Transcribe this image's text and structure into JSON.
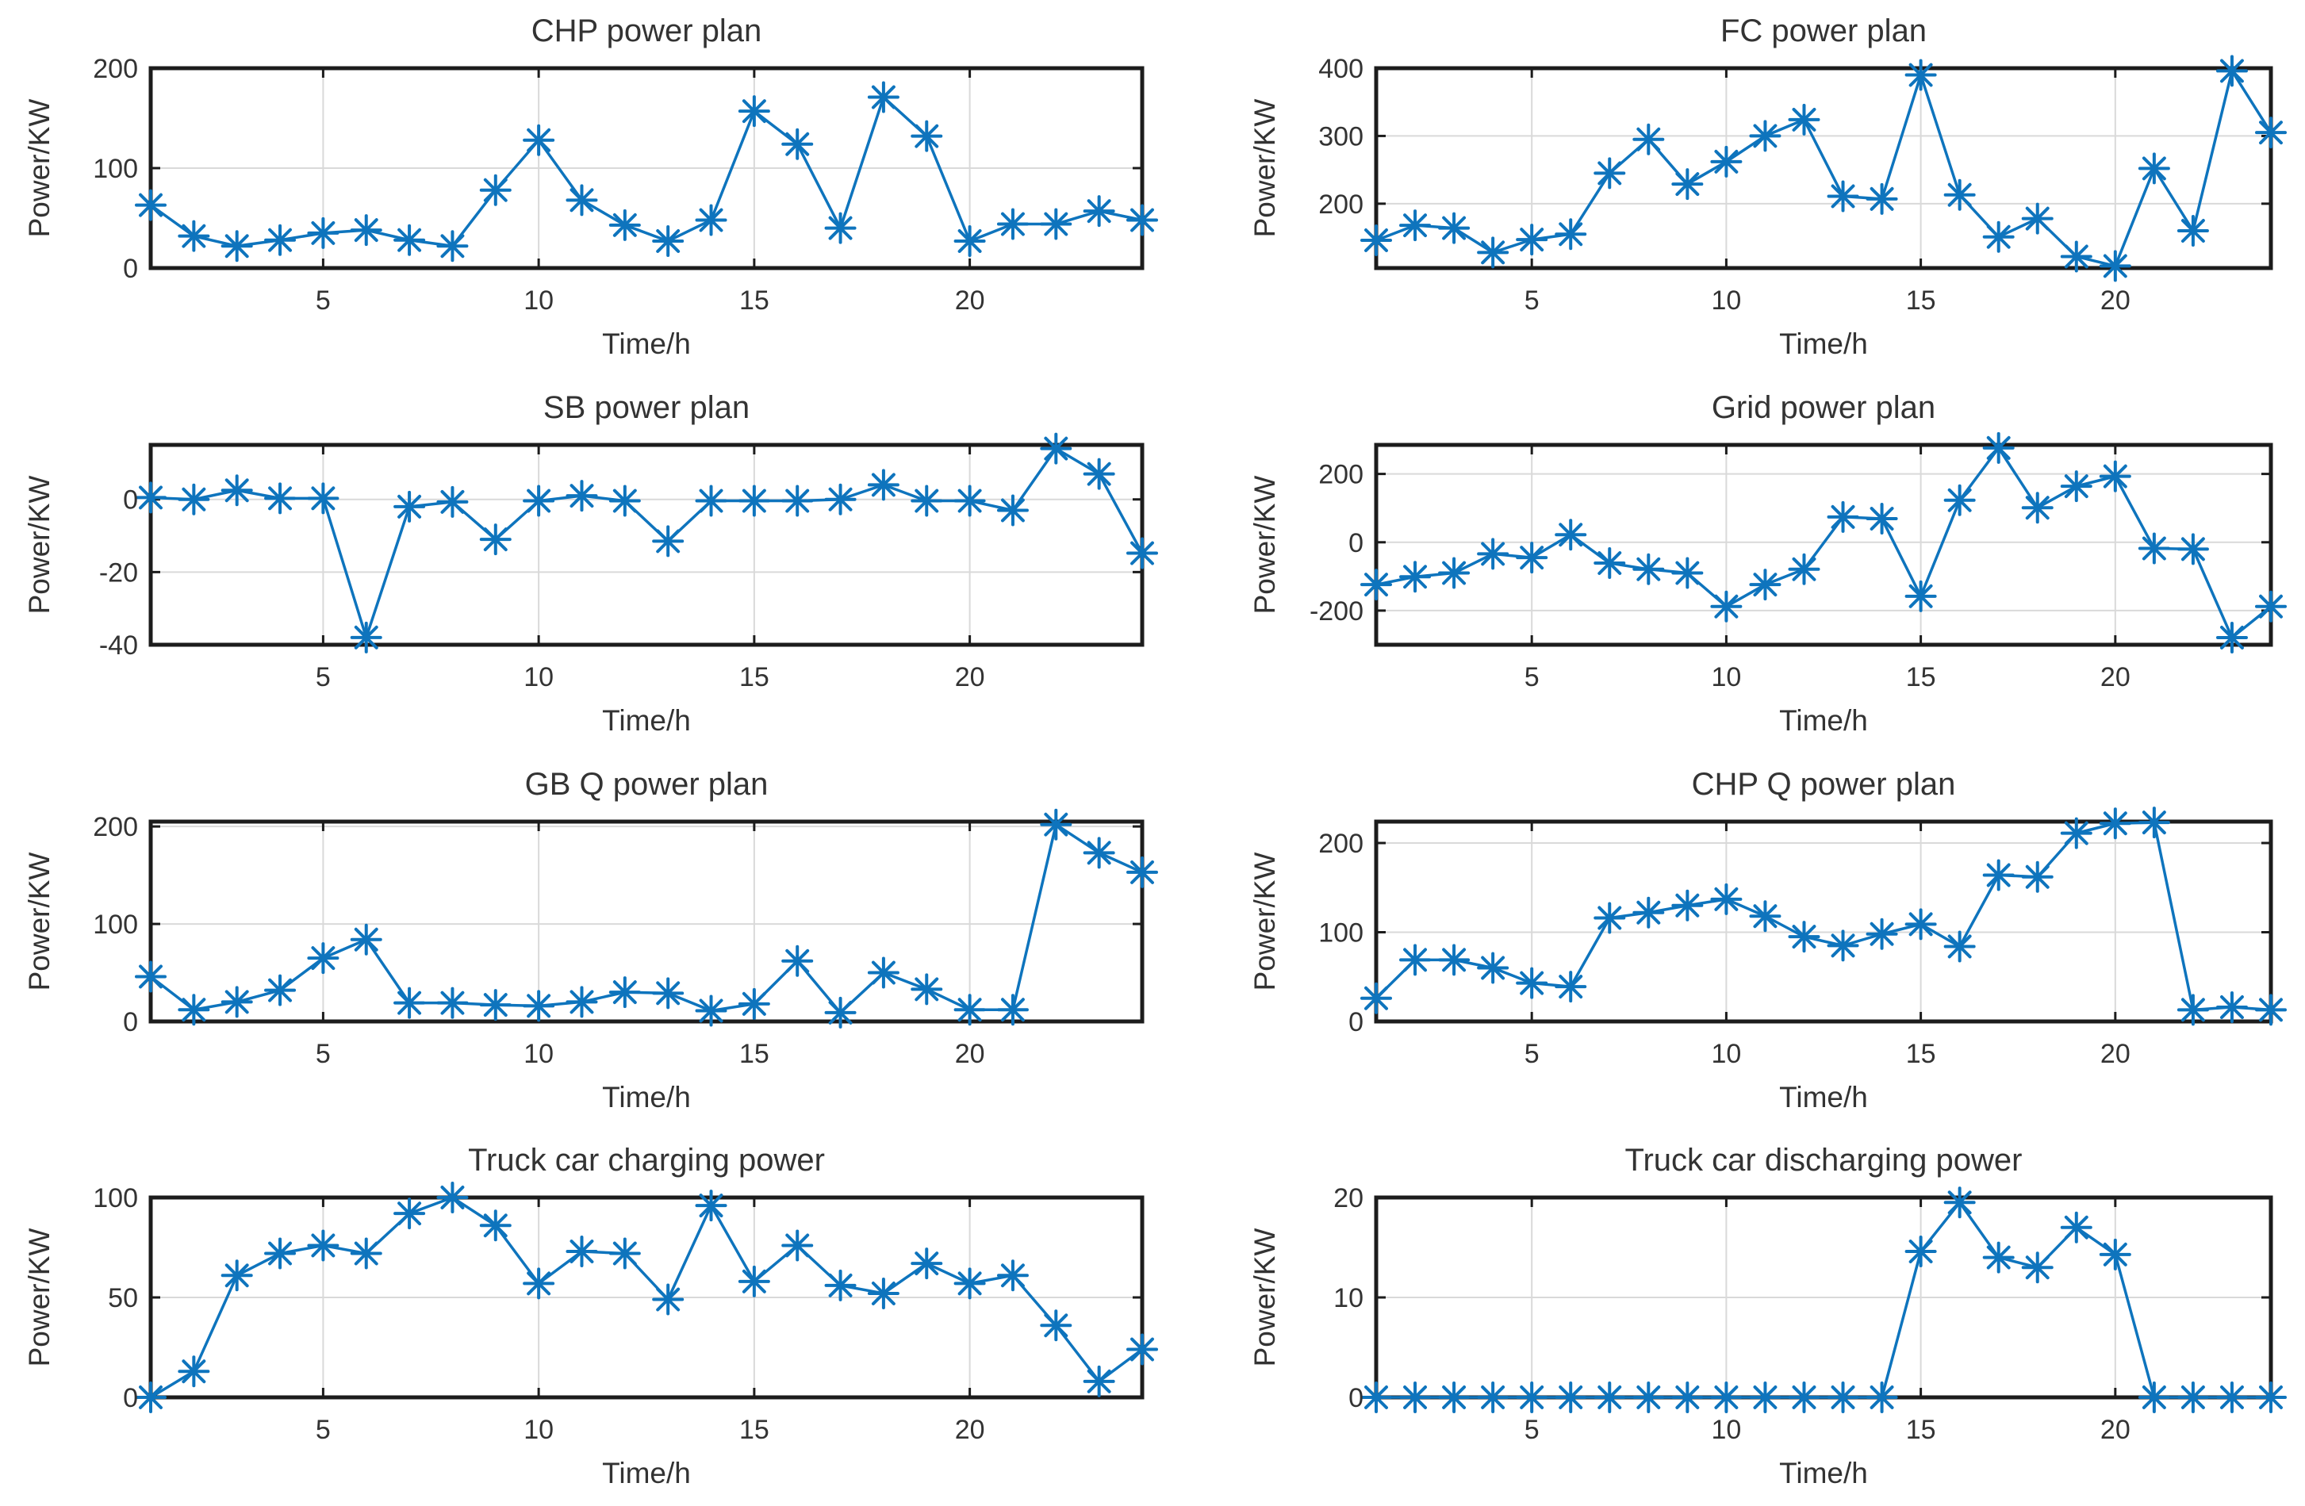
{
  "figure": {
    "background": "#ffffff",
    "line_color": "#0e74bd",
    "grid_color": "#d9d9d9",
    "axis_color": "#1c1c1c",
    "text_color": "#333333",
    "marker": "asterisk"
  },
  "chart_data": [
    {
      "type": "line",
      "title": "CHP power plan",
      "xlabel": "Time/h",
      "ylabel": "Power/KW",
      "xlim": [
        1,
        24
      ],
      "ylim": [
        0,
        200
      ],
      "xticks": [
        5,
        10,
        15,
        20
      ],
      "yticks": [
        0,
        100,
        200
      ],
      "grid": true,
      "legend": null,
      "x": [
        1,
        2,
        3,
        4,
        5,
        6,
        7,
        8,
        9,
        10,
        11,
        12,
        13,
        14,
        15,
        16,
        17,
        18,
        19,
        20,
        21,
        22,
        23,
        24
      ],
      "values": [
        63,
        32,
        22,
        28,
        35,
        38,
        28,
        22,
        78,
        128,
        68,
        43,
        27,
        48,
        157,
        124,
        40,
        171,
        132,
        27,
        44,
        44,
        57,
        48
      ]
    },
    {
      "type": "line",
      "title": "FC power plan",
      "xlabel": "Time/h",
      "ylabel": "Power/KW",
      "xlim": [
        1,
        24
      ],
      "ylim": [
        105,
        400
      ],
      "xticks": [
        5,
        10,
        15,
        20
      ],
      "yticks": [
        200,
        300,
        400
      ],
      "grid": true,
      "legend": null,
      "x": [
        1,
        2,
        3,
        4,
        5,
        6,
        7,
        8,
        9,
        10,
        11,
        12,
        13,
        14,
        15,
        16,
        17,
        18,
        19,
        20,
        21,
        22,
        23,
        24
      ],
      "values": [
        146,
        168,
        164,
        128,
        147,
        155,
        245,
        295,
        229,
        262,
        300,
        324,
        211,
        207,
        390,
        213,
        151,
        178,
        122,
        108,
        252,
        160,
        396,
        305
      ]
    },
    {
      "type": "line",
      "title": "SB power plan",
      "xlabel": "Time/h",
      "ylabel": "Power/KW",
      "xlim": [
        1,
        24
      ],
      "ylim": [
        -40,
        15
      ],
      "xticks": [
        5,
        10,
        15,
        20
      ],
      "yticks": [
        -40,
        -20,
        0
      ],
      "grid": true,
      "legend": null,
      "x": [
        1,
        2,
        3,
        4,
        5,
        6,
        7,
        8,
        9,
        10,
        11,
        12,
        13,
        14,
        15,
        16,
        17,
        18,
        19,
        20,
        21,
        22,
        23,
        24
      ],
      "values": [
        0.5,
        0,
        2.5,
        0.3,
        0.3,
        -38,
        -2,
        -0.7,
        -11,
        -0.4,
        1,
        -0.4,
        -11.5,
        -0.4,
        -0.4,
        -0.4,
        0,
        4,
        -0.4,
        -0.4,
        -3,
        14,
        7,
        -14.8
      ]
    },
    {
      "type": "line",
      "title": "Grid power plan",
      "xlabel": "Time/h",
      "ylabel": "Power/KW",
      "xlim": [
        1,
        24
      ],
      "ylim": [
        -300,
        285
      ],
      "xticks": [
        5,
        10,
        15,
        20
      ],
      "yticks": [
        -200,
        0,
        200
      ],
      "grid": true,
      "legend": null,
      "x": [
        1,
        2,
        3,
        4,
        5,
        6,
        7,
        8,
        9,
        10,
        11,
        12,
        13,
        14,
        15,
        16,
        17,
        18,
        19,
        20,
        21,
        22,
        23,
        24
      ],
      "values": [
        -124,
        -101,
        -90,
        -34,
        -45,
        22,
        -61,
        -79,
        -90,
        -188,
        -124,
        -79,
        74,
        69,
        -158,
        123,
        276,
        101,
        164,
        193,
        -18,
        -20,
        -279,
        -188
      ]
    },
    {
      "type": "line",
      "title": "GB Q power plan",
      "xlabel": "Time/h",
      "ylabel": "Power/KW",
      "xlim": [
        1,
        24
      ],
      "ylim": [
        0,
        205
      ],
      "xticks": [
        5,
        10,
        15,
        20
      ],
      "yticks": [
        0,
        100,
        200
      ],
      "grid": true,
      "legend": null,
      "x": [
        1,
        2,
        3,
        4,
        5,
        6,
        7,
        8,
        9,
        10,
        11,
        12,
        13,
        14,
        15,
        16,
        17,
        18,
        19,
        20,
        21,
        22,
        23,
        24
      ],
      "values": [
        46,
        12,
        20,
        32,
        65,
        84,
        19,
        19,
        17,
        16,
        20,
        30,
        29,
        11,
        18,
        62,
        9,
        50,
        33,
        12,
        12,
        202,
        173,
        153
      ]
    },
    {
      "type": "line",
      "title": "CHP Q power plan",
      "xlabel": "Time/h",
      "ylabel": "Power/KW",
      "xlim": [
        1,
        24
      ],
      "ylim": [
        0,
        224
      ],
      "xticks": [
        5,
        10,
        15,
        20
      ],
      "yticks": [
        0,
        100,
        200
      ],
      "grid": true,
      "legend": null,
      "x": [
        1,
        2,
        3,
        4,
        5,
        6,
        7,
        8,
        9,
        10,
        11,
        12,
        13,
        14,
        15,
        16,
        17,
        18,
        19,
        20,
        21,
        22,
        23,
        24
      ],
      "values": [
        26,
        69,
        69,
        60,
        43,
        39,
        116,
        122,
        130,
        137,
        118,
        95,
        85,
        98,
        109,
        84,
        164,
        162,
        211,
        222,
        223,
        13,
        16,
        13
      ]
    },
    {
      "type": "line",
      "title": "Truck car charging power",
      "xlabel": "Time/h",
      "ylabel": "Power/KW",
      "xlim": [
        1,
        24
      ],
      "ylim": [
        0,
        100
      ],
      "xticks": [
        5,
        10,
        15,
        20
      ],
      "yticks": [
        0,
        50,
        100
      ],
      "grid": true,
      "legend": null,
      "x": [
        1,
        2,
        3,
        4,
        5,
        6,
        7,
        8,
        9,
        10,
        11,
        12,
        13,
        14,
        15,
        16,
        17,
        18,
        19,
        20,
        21,
        22,
        23,
        24
      ],
      "values": [
        0,
        13,
        61,
        72,
        76,
        72,
        92,
        100,
        86,
        57,
        73,
        72,
        49,
        96,
        58,
        76,
        56,
        52,
        67,
        57,
        61,
        36,
        8,
        24
      ]
    },
    {
      "type": "line",
      "title": "Truck car discharging power",
      "xlabel": "Time/h",
      "ylabel": "Power/KW",
      "xlim": [
        1,
        24
      ],
      "ylim": [
        0,
        20
      ],
      "xticks": [
        5,
        10,
        15,
        20
      ],
      "yticks": [
        0,
        10,
        20
      ],
      "grid": true,
      "legend": null,
      "x": [
        1,
        2,
        3,
        4,
        5,
        6,
        7,
        8,
        9,
        10,
        11,
        12,
        13,
        14,
        15,
        16,
        17,
        18,
        19,
        20,
        21,
        22,
        23,
        24
      ],
      "values": [
        0,
        0,
        0,
        0,
        0,
        0,
        0,
        0,
        0,
        0,
        0,
        0,
        0,
        0,
        14.6,
        19.5,
        14,
        13,
        17,
        14.3,
        0,
        0,
        0,
        0
      ]
    }
  ]
}
